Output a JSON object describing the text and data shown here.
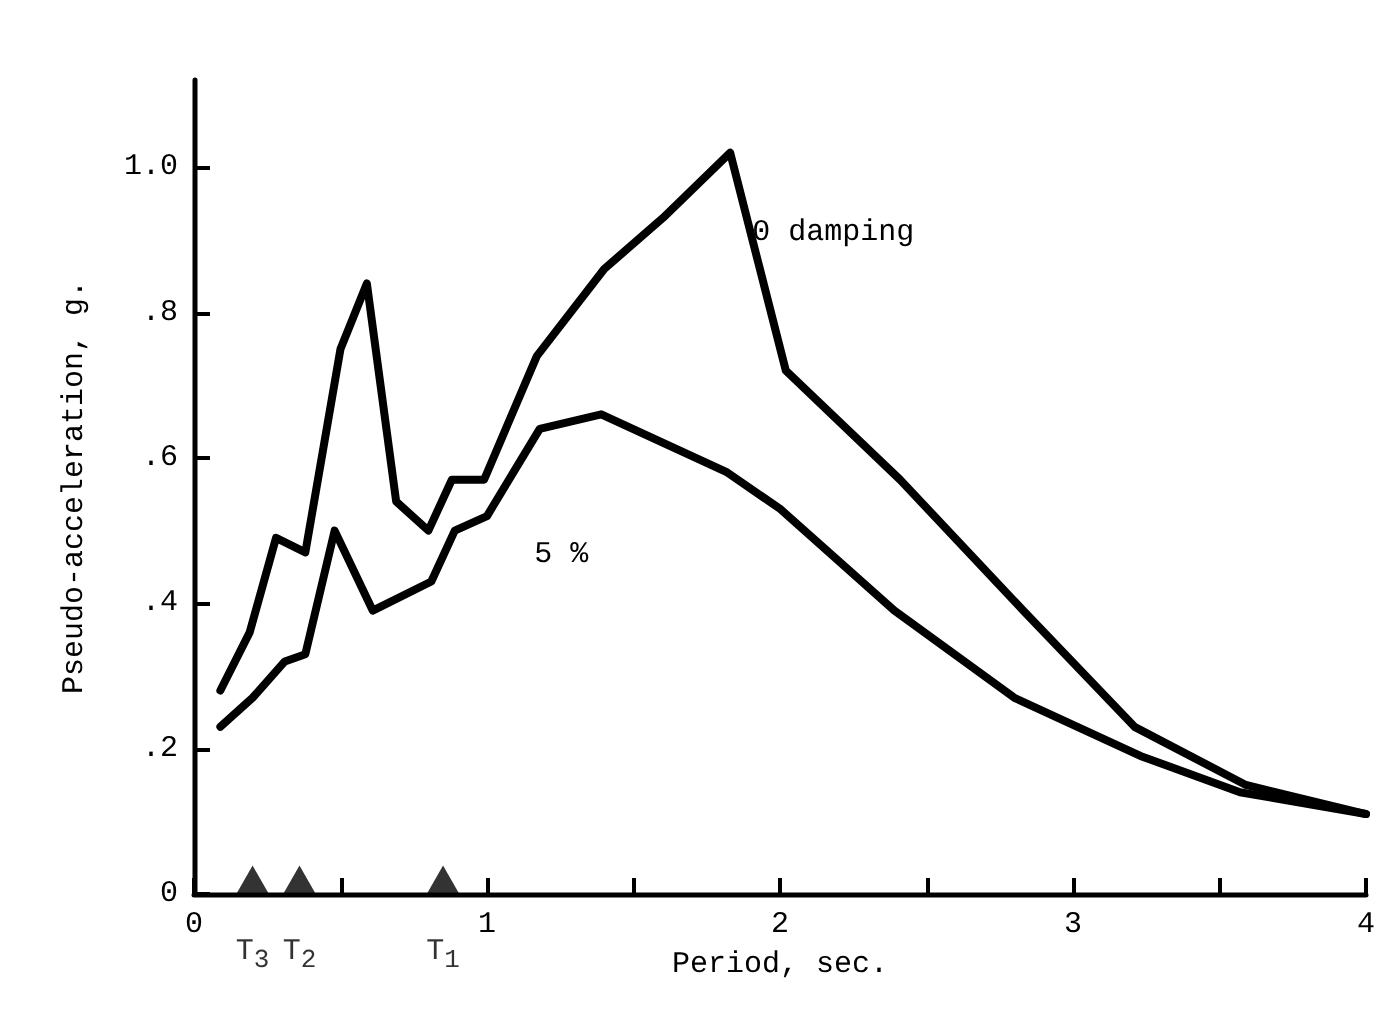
{
  "chart_data": {
    "type": "line",
    "xlabel": "Period, sec.",
    "ylabel": "Pseudo-acceleration, g.",
    "xlim": [
      0,
      4
    ],
    "xticks": [
      0,
      {
        "value": 0.5,
        "label": null
      },
      1,
      {
        "value": 1.5,
        "label": null
      },
      2,
      {
        "value": 2.5,
        "label": null
      },
      3,
      {
        "value": 3.5,
        "label": null
      },
      4
    ],
    "ylim": [
      0,
      1.12
    ],
    "yticks": [
      0,
      {
        "value": 0.2,
        "label": ".2"
      },
      {
        "value": 0.4,
        "label": ".4"
      },
      {
        "value": 0.6,
        "label": ".6"
      },
      {
        "value": 0.8,
        "label": ".8"
      },
      {
        "value": 1.0,
        "label": "1.0"
      }
    ],
    "grid": false,
    "legend": false,
    "marker": "none",
    "line_style": "solid",
    "series": [
      {
        "name": "0 damping",
        "color": "#000000",
        "x": [
          0.09,
          0.19,
          0.28,
          0.38,
          0.5,
          0.59,
          0.69,
          0.8,
          0.88,
          0.99,
          1.17,
          1.4,
          1.6,
          1.83,
          2.02,
          2.41,
          2.83,
          3.21,
          3.59,
          4.0
        ],
        "values": [
          0.28,
          0.36,
          0.49,
          0.47,
          0.75,
          0.84,
          0.54,
          0.5,
          0.57,
          0.57,
          0.74,
          0.86,
          0.93,
          1.02,
          0.72,
          0.57,
          0.39,
          0.23,
          0.15,
          0.11
        ]
      },
      {
        "name": "5 %",
        "color": "#000000",
        "x": [
          0.09,
          0.2,
          0.31,
          0.38,
          0.48,
          0.61,
          0.81,
          0.89,
          1.0,
          1.18,
          1.39,
          1.82,
          2.0,
          2.39,
          2.8,
          3.23,
          3.57,
          4.0
        ],
        "values": [
          0.23,
          0.27,
          0.32,
          0.33,
          0.5,
          0.39,
          0.43,
          0.5,
          0.52,
          0.64,
          0.66,
          0.58,
          0.53,
          0.39,
          0.27,
          0.19,
          0.14,
          0.11
        ]
      },
      {
        "type": "scatter",
        "color": "#000000",
        "marker": "triangle",
        "x": [
          0.2,
          0.36,
          0.85
        ],
        "values": [
          0.02,
          0.02,
          0.02
        ]
      }
    ],
    "annotations": [
      {
        "text": "T$_{3}$",
        "x": 0.2,
        "y": 0.02
      },
      {
        "text": "T$_{2}$",
        "x": 0.36,
        "y": 0.02
      },
      {
        "text": "T$_{1}$",
        "x": 0.85,
        "y": 0.02
      }
    ]
  }
}
